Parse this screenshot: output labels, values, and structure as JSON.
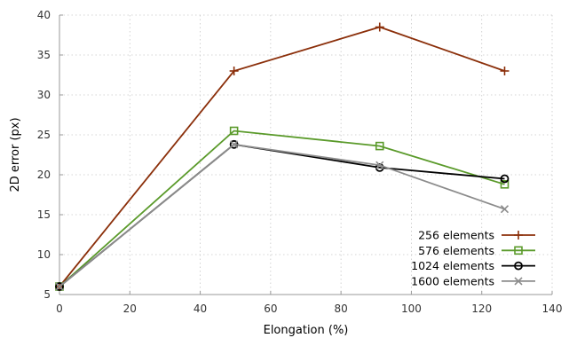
{
  "chart_data": {
    "type": "line",
    "title": "",
    "xlabel": "Elongation (%)",
    "ylabel": "2D error (px)",
    "xlim": [
      0,
      140
    ],
    "ylim": [
      5,
      40
    ],
    "xticks": [
      0,
      20,
      40,
      60,
      80,
      100,
      120,
      140
    ],
    "yticks": [
      5,
      10,
      15,
      20,
      25,
      30,
      35,
      40
    ],
    "grid": true,
    "legend_position": "bottom-right",
    "series": [
      {
        "name": "256 elements",
        "color": "#8B2F0A",
        "marker": "plus",
        "x": [
          0,
          49.6,
          91,
          126.5
        ],
        "y": [
          6,
          33,
          38.5,
          33
        ]
      },
      {
        "name": "576 elements",
        "color": "#5A9A2A",
        "marker": "square",
        "x": [
          0,
          49.6,
          91,
          126.5
        ],
        "y": [
          6,
          25.5,
          23.6,
          18.8
        ]
      },
      {
        "name": "1024 elements",
        "color": "#000000",
        "marker": "circle",
        "x": [
          0,
          49.6,
          91,
          126.5
        ],
        "y": [
          6,
          23.8,
          20.9,
          19.5
        ]
      },
      {
        "name": "1600 elements",
        "color": "#8C8C8C",
        "marker": "cross",
        "x": [
          0,
          49.6,
          91,
          126.5
        ],
        "y": [
          6,
          23.8,
          21.2,
          15.7
        ]
      }
    ]
  }
}
